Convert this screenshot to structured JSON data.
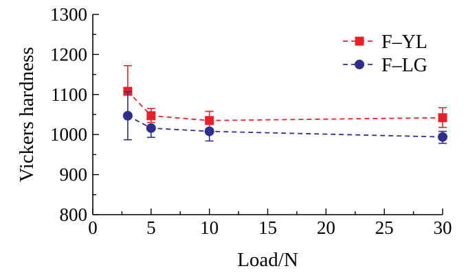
{
  "chart_data": {
    "type": "line",
    "xlabel": "Load/N",
    "ylabel": "Vickers hardness",
    "xlim": [
      0,
      30
    ],
    "ylim": [
      800,
      1300
    ],
    "xticks": [
      "0",
      "5",
      "10",
      "15",
      "20",
      "25",
      "30"
    ],
    "yticks": [
      "800",
      "900",
      "1000",
      "1100",
      "1200",
      "1300"
    ],
    "legend_position": "top-right",
    "grid": false,
    "series": [
      {
        "name": "F–YL",
        "color": "#e8202a",
        "marker": "square",
        "x": [
          3,
          5,
          10,
          30
        ],
        "y": [
          1108,
          1047,
          1035,
          1042
        ],
        "err_low": [
          1108,
          1030,
          1015,
          1018
        ],
        "err_high": [
          1172,
          1065,
          1058,
          1067
        ]
      },
      {
        "name": "F–LG",
        "color": "#2e2e8e",
        "marker": "circle",
        "x": [
          3,
          5,
          10,
          30
        ],
        "y": [
          1047,
          1016,
          1008,
          994
        ],
        "err_low": [
          987,
          993,
          984,
          978
        ],
        "err_high": [
          1107,
          1016,
          1008,
          1008
        ]
      }
    ]
  }
}
